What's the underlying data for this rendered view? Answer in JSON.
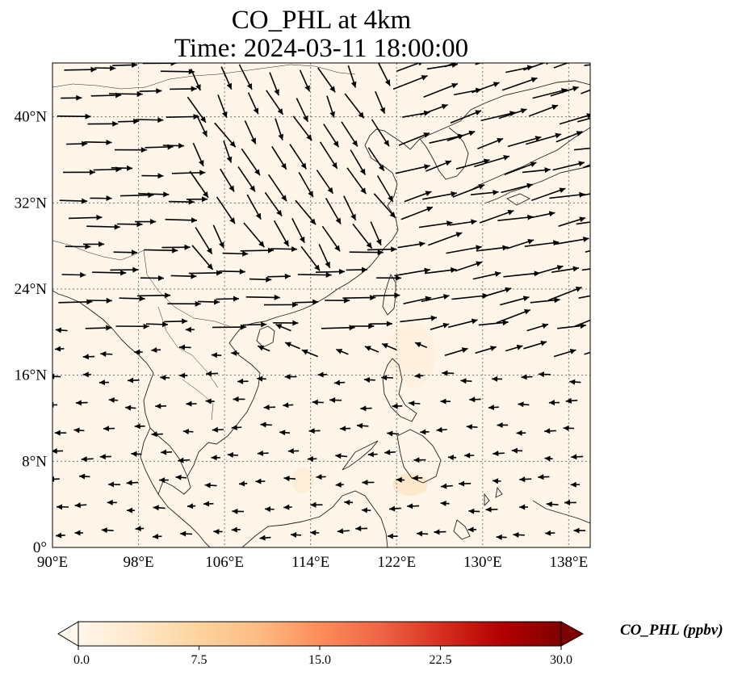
{
  "title": {
    "line1": "CO_PHL at 4km",
    "line2": "Time: 2024-03-11 18:00:00"
  },
  "map": {
    "lon_range": [
      90,
      140
    ],
    "lat_range": [
      0,
      45
    ],
    "lon_ticks": [
      90,
      98,
      106,
      114,
      122,
      130,
      138
    ],
    "lat_ticks": [
      0,
      8,
      16,
      24,
      32,
      40
    ],
    "lon_tick_labels": [
      "90°E",
      "98°E",
      "106°E",
      "114°E",
      "122°E",
      "130°E",
      "138°E"
    ],
    "lat_tick_labels": [
      "0°",
      "8°N",
      "16°N",
      "24°N",
      "32°N",
      "40°N"
    ],
    "gridlines": true,
    "background_color": "#fff5e8",
    "coastline_color": "#222222",
    "arrow_color": "#000000"
  },
  "colorbar": {
    "label": "CO_PHL (ppbv)",
    "ticks": [
      0.0,
      7.5,
      15.0,
      22.5,
      30.0
    ],
    "tick_labels": [
      "0.0",
      "7.5",
      "15.0",
      "22.5",
      "30.0"
    ],
    "range": [
      0,
      30
    ],
    "colormap": "OrRd",
    "stops": [
      "#fff7ec",
      "#fee8c8",
      "#fdd49e",
      "#fdbb84",
      "#fc8d59",
      "#ef6548",
      "#d7301f",
      "#b30000",
      "#7f0000"
    ],
    "extend": "both"
  }
}
